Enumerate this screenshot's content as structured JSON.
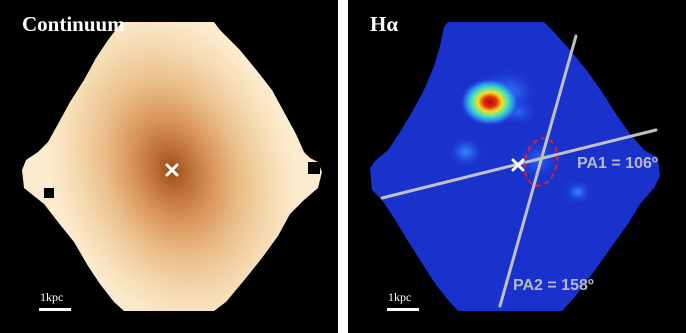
{
  "panels": {
    "continuum": {
      "title": "Continuum",
      "scalebar": "1kpc"
    },
    "halpha": {
      "title": "Hα",
      "scalebar": "1kpc",
      "pa1": "PA1 = 106º",
      "pa2": "PA2 = 158º"
    }
  },
  "colors": {
    "continuum_light": "#f8e3bf",
    "continuum_core": "#a65221",
    "halpha_background": "#1830c8",
    "halpha_peak": "#c01010",
    "slit_lines": "#c0c0c8",
    "aperture": "#e02020"
  },
  "icons": {
    "center_marker": "x-cross-icon"
  }
}
